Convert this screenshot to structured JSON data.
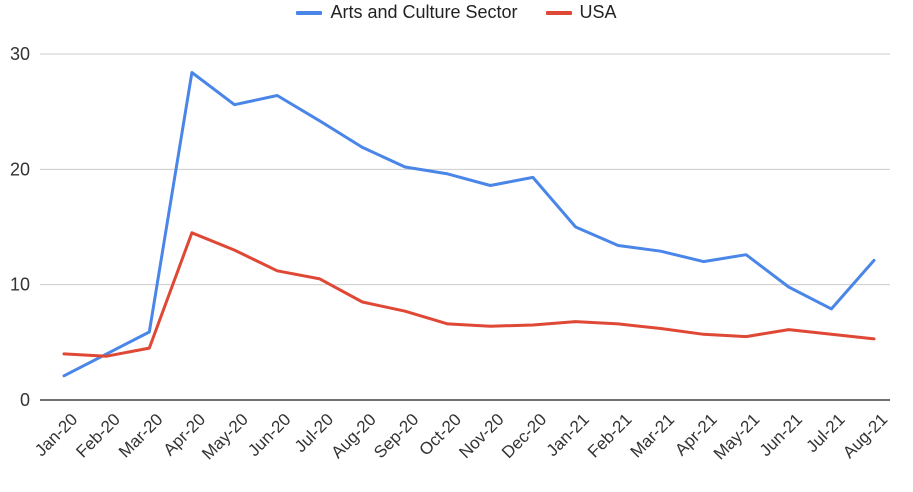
{
  "chart_data": {
    "type": "line",
    "title": "",
    "xlabel": "",
    "ylabel": "",
    "ylim": [
      0,
      30
    ],
    "yticks": [
      0,
      10,
      20,
      30
    ],
    "grid": true,
    "legend_position": "top",
    "categories": [
      "Jan-20",
      "Feb-20",
      "Mar-20",
      "Apr-20",
      "May-20",
      "Jun-20",
      "Jul-20",
      "Aug-20",
      "Sep-20",
      "Oct-20",
      "Nov-20",
      "Dec-20",
      "Jan-21",
      "Feb-21",
      "Mar-21",
      "Apr-21",
      "May-21",
      "Jun-21",
      "Jul-21",
      "Aug-21"
    ],
    "series": [
      {
        "name": "Arts and Culture Sector",
        "color": "#4a86e8",
        "values": [
          2.1,
          4.0,
          5.9,
          28.4,
          25.6,
          26.4,
          24.2,
          21.9,
          20.2,
          19.6,
          18.6,
          19.3,
          15.0,
          13.4,
          12.9,
          12.0,
          12.6,
          9.8,
          7.9,
          12.1
        ]
      },
      {
        "name": "USA",
        "color": "#e04836",
        "values": [
          4.0,
          3.8,
          4.5,
          14.5,
          13.0,
          11.2,
          10.5,
          8.5,
          7.7,
          6.6,
          6.4,
          6.5,
          6.8,
          6.6,
          6.2,
          5.7,
          5.5,
          6.1,
          5.7,
          5.3
        ]
      }
    ]
  }
}
